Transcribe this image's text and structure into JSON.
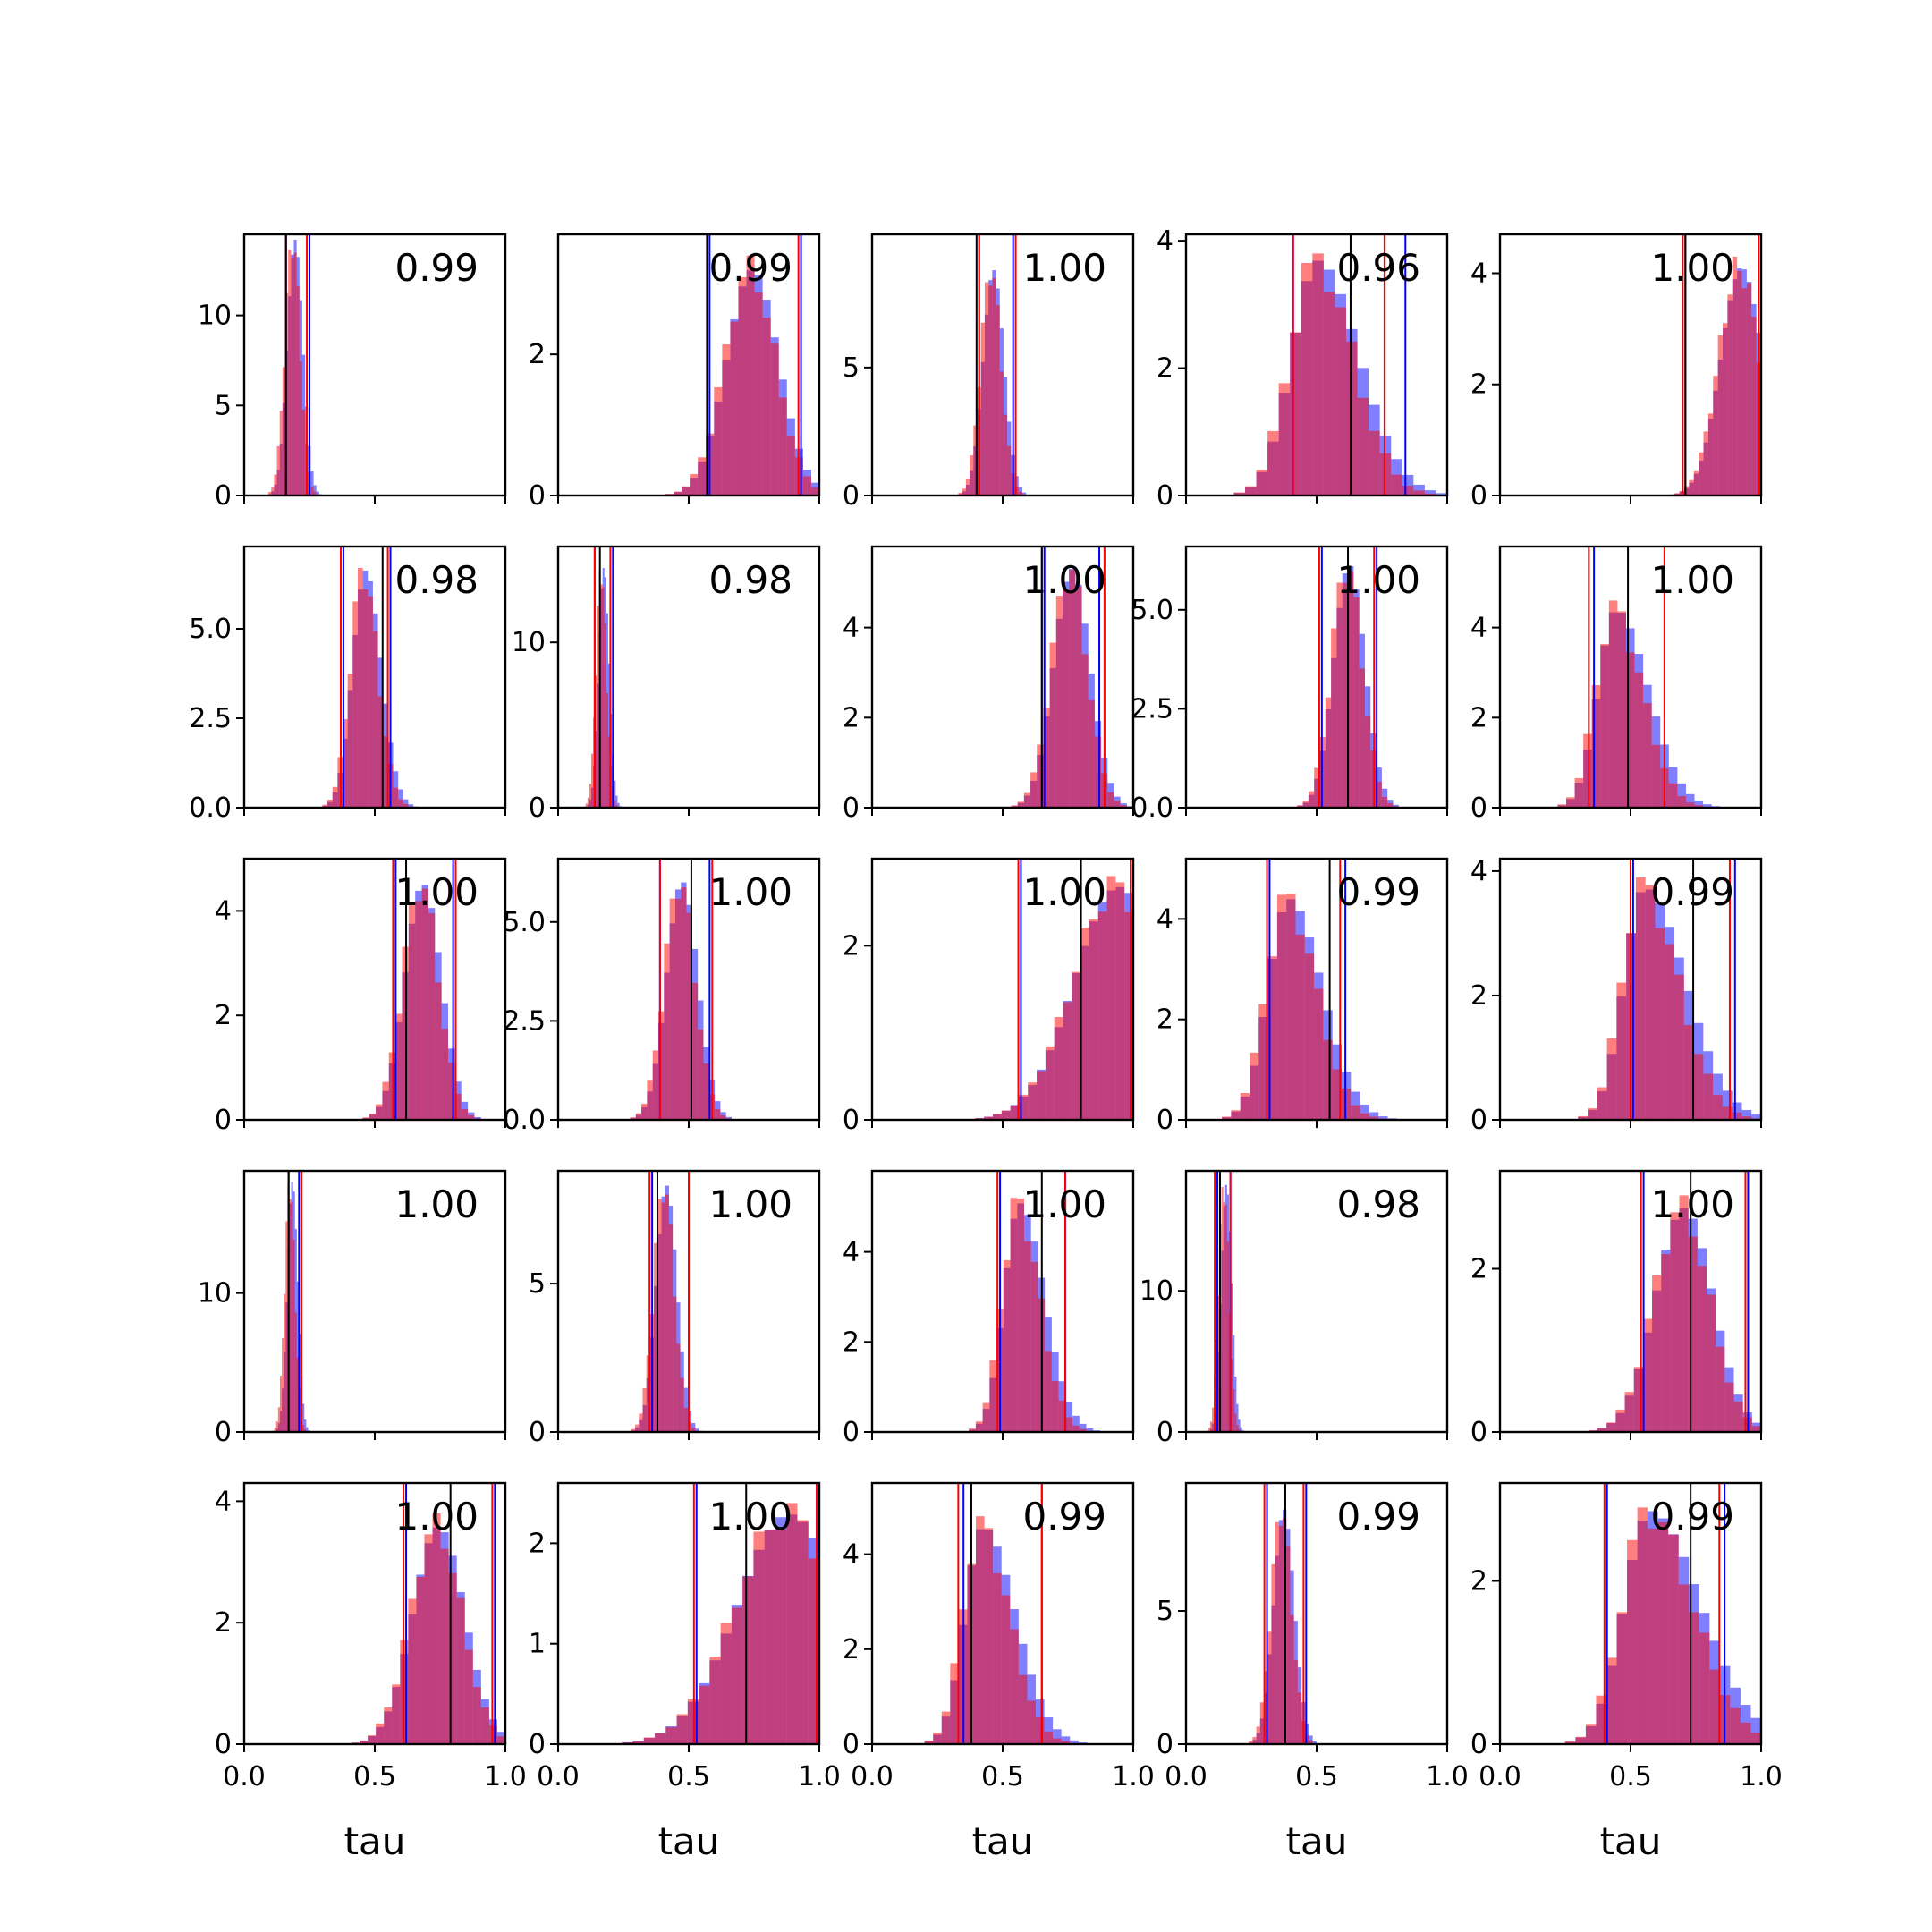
{
  "figure": {
    "xlabel": "tau"
  },
  "colors": {
    "blue": "#0000ff",
    "red": "#ff0000",
    "black": "#000000"
  },
  "chart_data": {
    "type": "histogram-grid",
    "rows": 5,
    "cols": 5,
    "xlim": [
      0.0,
      1.0
    ],
    "xticks": [
      "0.0",
      "0.5",
      "1.0"
    ],
    "series": [
      {
        "name": "",
        "color": "#0000ff",
        "alpha": 0.5
      },
      {
        "name": "",
        "color": "#ff0000",
        "alpha": 0.5
      }
    ],
    "panels": [
      {
        "label": "0.99",
        "ymax": 14.5,
        "yticks": [
          "0",
          "5",
          "10"
        ],
        "ytick_values": [
          0,
          5,
          10
        ],
        "peak": 14.2,
        "mean": 0.19,
        "sd": 0.03,
        "skew": 0,
        "vline_black": 0.16,
        "vlines_red": [
          0.16,
          0.24
        ],
        "vlines_blue": [
          0.16,
          0.25
        ]
      },
      {
        "label": "0.99",
        "ymax": 3.7,
        "yticks": [
          "0",
          "2"
        ],
        "ytick_values": [
          0,
          2
        ],
        "peak": 3.4,
        "mean": 0.74,
        "sd": 0.1,
        "skew": 0,
        "vline_black": 0.57,
        "vlines_red": [
          0.57,
          0.92
        ],
        "vlines_blue": [
          0.58,
          0.93
        ]
      },
      {
        "label": "1.00",
        "ymax": 10.2,
        "yticks": [
          "0",
          "5"
        ],
        "ytick_values": [
          0,
          5
        ],
        "peak": 8.8,
        "mean": 0.46,
        "sd": 0.04,
        "skew": 0,
        "vline_black": 0.4,
        "vlines_red": [
          0.41,
          0.55
        ],
        "vlines_blue": [
          0.41,
          0.54
        ]
      },
      {
        "label": "0.96",
        "ymax": 4.1,
        "yticks": [
          "0",
          "2",
          "4"
        ],
        "ytick_values": [
          0,
          2,
          4
        ],
        "peak": 3.8,
        "mean": 0.5,
        "sd": 0.1,
        "skew": 0.15,
        "vline_black": 0.63,
        "vlines_red": [
          0.41,
          0.76
        ],
        "vlines_blue": [
          0.41,
          0.84
        ]
      },
      {
        "label": "1.00",
        "ymax": 4.7,
        "yticks": [
          "0",
          "2",
          "4"
        ],
        "ytick_values": [
          0,
          2,
          4
        ],
        "peak": 4.3,
        "mean": 0.92,
        "sd": 0.08,
        "skew": 0,
        "vline_black": 0.71,
        "vlines_red": [
          0.7,
          0.99
        ],
        "vlines_blue": [
          0.71,
          0.99
        ]
      },
      {
        "label": "0.98",
        "ymax": 7.3,
        "yticks": [
          "0.0",
          "2.5",
          "5.0"
        ],
        "ytick_values": [
          0,
          2.5,
          5
        ],
        "peak": 6.7,
        "mean": 0.46,
        "sd": 0.05,
        "skew": 0.05,
        "vline_black": 0.53,
        "vlines_red": [
          0.37,
          0.55
        ],
        "vlines_blue": [
          0.38,
          0.56
        ]
      },
      {
        "label": "0.98",
        "ymax": 15.8,
        "yticks": [
          "0",
          "10"
        ],
        "ytick_values": [
          0,
          10
        ],
        "peak": 14.5,
        "mean": 0.17,
        "sd": 0.02,
        "skew": 0,
        "vline_black": 0.16,
        "vlines_red": [
          0.14,
          0.2
        ],
        "vlines_blue": [
          0.14,
          0.21
        ]
      },
      {
        "label": "1.00",
        "ymax": 5.8,
        "yticks": [
          "0",
          "2",
          "4"
        ],
        "ytick_values": [
          0,
          2,
          4
        ],
        "peak": 5.3,
        "mean": 0.76,
        "sd": 0.07,
        "skew": 0,
        "vline_black": 0.65,
        "vlines_red": [
          0.65,
          0.89
        ],
        "vlines_blue": [
          0.66,
          0.87
        ]
      },
      {
        "label": "1.00",
        "ymax": 6.6,
        "yticks": [
          "0.0",
          "2.5",
          "5.0"
        ],
        "ytick_values": [
          0,
          2.5,
          5
        ],
        "peak": 6.1,
        "mean": 0.62,
        "sd": 0.06,
        "skew": 0,
        "vline_black": 0.62,
        "vlines_red": [
          0.51,
          0.72
        ],
        "vlines_blue": [
          0.52,
          0.73
        ]
      },
      {
        "label": "1.00",
        "ymax": 5.8,
        "yticks": [
          "0",
          "2",
          "4"
        ],
        "ytick_values": [
          0,
          2,
          4
        ],
        "peak": 4.6,
        "mean": 0.44,
        "sd": 0.07,
        "skew": 0.2,
        "vline_black": 0.49,
        "vlines_red": [
          0.34,
          0.63
        ],
        "vlines_blue": [
          0.36,
          0.63
        ]
      },
      {
        "label": "1.00",
        "ymax": 5.0,
        "yticks": [
          "0",
          "2",
          "4"
        ],
        "ytick_values": [
          0,
          2,
          4
        ],
        "peak": 4.5,
        "mean": 0.68,
        "sd": 0.07,
        "skew": 0,
        "vline_black": 0.62,
        "vlines_red": [
          0.57,
          0.81
        ],
        "vlines_blue": [
          0.58,
          0.8
        ]
      },
      {
        "label": "1.00",
        "ymax": 6.6,
        "yticks": [
          "0.0",
          "2.5",
          "5.0"
        ],
        "ytick_values": [
          0,
          2.5,
          5
        ],
        "peak": 6.0,
        "mean": 0.47,
        "sd": 0.06,
        "skew": 0,
        "vline_black": 0.51,
        "vlines_red": [
          0.39,
          0.59
        ],
        "vlines_blue": [
          0.39,
          0.58
        ]
      },
      {
        "label": "1.00",
        "ymax": 3.0,
        "yticks": [
          "0",
          "2"
        ],
        "ytick_values": [
          0,
          2
        ],
        "peak": 2.8,
        "mean": 0.94,
        "sd": 0.17,
        "skew": 0,
        "vline_black": 0.8,
        "vlines_red": [
          0.56,
          0.99
        ],
        "vlines_blue": [
          0.57,
          0.99
        ]
      },
      {
        "label": "0.99",
        "ymax": 5.2,
        "yticks": [
          "0",
          "2",
          "4"
        ],
        "ytick_values": [
          0,
          2,
          4
        ],
        "peak": 4.5,
        "mean": 0.39,
        "sd": 0.08,
        "skew": 0.15,
        "vline_black": 0.55,
        "vlines_red": [
          0.31,
          0.59
        ],
        "vlines_blue": [
          0.32,
          0.61
        ]
      },
      {
        "label": "0.99",
        "ymax": 4.2,
        "yticks": [
          "0",
          "2",
          "4"
        ],
        "ytick_values": [
          0,
          2,
          4
        ],
        "peak": 3.9,
        "mean": 0.55,
        "sd": 0.08,
        "skew": 0.25,
        "vline_black": 0.74,
        "vlines_red": [
          0.5,
          0.88
        ],
        "vlines_blue": [
          0.51,
          0.9
        ]
      },
      {
        "label": "1.00",
        "ymax": 18.8,
        "yticks": [
          "0",
          "10"
        ],
        "ytick_values": [
          0,
          10
        ],
        "peak": 18.0,
        "mean": 0.18,
        "sd": 0.02,
        "skew": 0,
        "vline_black": 0.17,
        "vlines_red": [
          0.17,
          0.22
        ],
        "vlines_blue": [
          0.17,
          0.21
        ]
      },
      {
        "label": "1.00",
        "ymax": 8.8,
        "yticks": [
          "0",
          "5"
        ],
        "ytick_values": [
          0,
          5
        ],
        "peak": 8.3,
        "mean": 0.41,
        "sd": 0.04,
        "skew": 0,
        "vline_black": 0.38,
        "vlines_red": [
          0.35,
          0.5
        ],
        "vlines_blue": [
          0.36,
          0.5
        ]
      },
      {
        "label": "1.00",
        "ymax": 5.8,
        "yticks": [
          "0",
          "2",
          "4"
        ],
        "ytick_values": [
          0,
          2,
          4
        ],
        "peak": 5.2,
        "mean": 0.56,
        "sd": 0.06,
        "skew": 0.15,
        "vline_black": 0.65,
        "vlines_red": [
          0.48,
          0.74
        ],
        "vlines_blue": [
          0.49,
          0.74
        ]
      },
      {
        "label": "0.98",
        "ymax": 18.5,
        "yticks": [
          "0",
          "10"
        ],
        "ytick_values": [
          0,
          10
        ],
        "peak": 17.5,
        "mean": 0.15,
        "sd": 0.02,
        "skew": 0,
        "vline_black": 0.13,
        "vlines_red": [
          0.11,
          0.17
        ],
        "vlines_blue": [
          0.12,
          0.17
        ]
      },
      {
        "label": "1.00",
        "ymax": 3.2,
        "yticks": [
          "0",
          "2"
        ],
        "ytick_values": [
          0,
          2
        ],
        "peak": 2.9,
        "mean": 0.7,
        "sd": 0.11,
        "skew": 0,
        "vline_black": 0.73,
        "vlines_red": [
          0.54,
          0.94
        ],
        "vlines_blue": [
          0.55,
          0.95
        ]
      },
      {
        "label": "1.00",
        "ymax": 4.3,
        "yticks": [
          "0",
          "2",
          "4"
        ],
        "ytick_values": [
          0,
          2,
          4
        ],
        "peak": 3.8,
        "mean": 0.74,
        "sd": 0.1,
        "skew": 0,
        "vline_black": 0.79,
        "vlines_red": [
          0.61,
          0.95
        ],
        "vlines_blue": [
          0.62,
          0.96
        ]
      },
      {
        "label": "1.00",
        "ymax": 2.6,
        "yticks": [
          "0",
          "1",
          "2"
        ],
        "ytick_values": [
          0,
          1,
          2
        ],
        "peak": 2.4,
        "mean": 0.88,
        "sd": 0.2,
        "skew": 0,
        "vline_black": 0.72,
        "vlines_red": [
          0.52,
          0.99
        ],
        "vlines_blue": [
          0.53,
          0.99
        ]
      },
      {
        "label": "0.99",
        "ymax": 5.5,
        "yticks": [
          "0",
          "2",
          "4"
        ],
        "ytick_values": [
          0,
          2,
          4
        ],
        "peak": 4.8,
        "mean": 0.42,
        "sd": 0.07,
        "skew": 0.2,
        "vline_black": 0.38,
        "vlines_red": [
          0.33,
          0.65
        ],
        "vlines_blue": [
          0.35,
          0.65
        ]
      },
      {
        "label": "0.99",
        "ymax": 9.8,
        "yticks": [
          "0",
          "5"
        ],
        "ytick_values": [
          0,
          5
        ],
        "peak": 8.8,
        "mean": 0.37,
        "sd": 0.04,
        "skew": 0,
        "vline_black": 0.38,
        "vlines_red": [
          0.3,
          0.45
        ],
        "vlines_blue": [
          0.31,
          0.46
        ]
      },
      {
        "label": "0.99",
        "ymax": 3.2,
        "yticks": [
          "0",
          "2"
        ],
        "ytick_values": [
          0,
          2
        ],
        "peak": 2.9,
        "mean": 0.57,
        "sd": 0.1,
        "skew": 0.25,
        "vline_black": 0.73,
        "vlines_red": [
          0.4,
          0.84
        ],
        "vlines_blue": [
          0.41,
          0.86
        ]
      }
    ]
  }
}
